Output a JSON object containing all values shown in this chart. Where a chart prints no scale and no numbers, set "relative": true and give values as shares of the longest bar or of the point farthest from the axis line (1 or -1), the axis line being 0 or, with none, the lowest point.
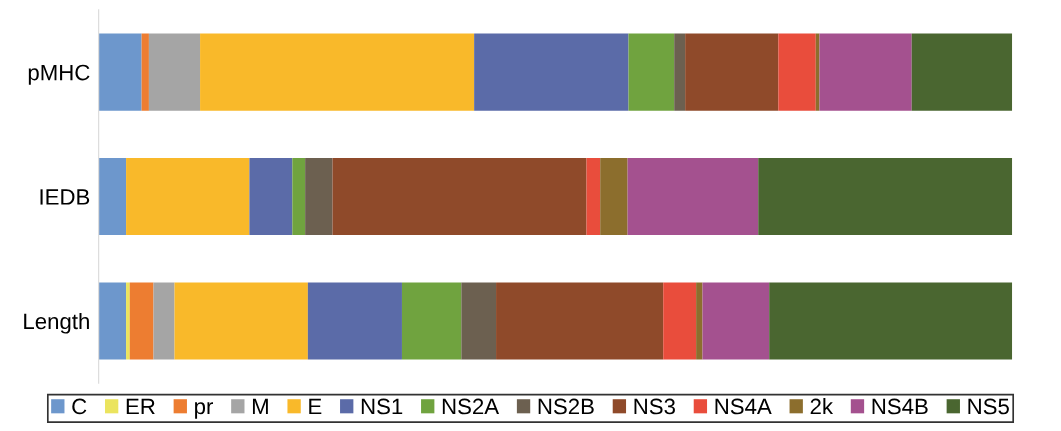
{
  "chart_data": {
    "type": "bar",
    "orientation": "horizontal",
    "stacked": true,
    "relative": true,
    "legend": "bottom",
    "grid": false,
    "categories": [
      "pMHC",
      "IEDB",
      "Length"
    ],
    "series": [
      {
        "name": "C",
        "color": "#6d97cc",
        "values": [
          0.047,
          0.03,
          0.03
        ]
      },
      {
        "name": "ER",
        "color": "#ebe45e",
        "values": [
          0,
          0,
          0.004
        ]
      },
      {
        "name": "pr",
        "color": "#ed7d31",
        "values": [
          0.008,
          0,
          0.026
        ]
      },
      {
        "name": "M",
        "color": "#a5a5a5",
        "values": [
          0.056,
          0,
          0.023
        ]
      },
      {
        "name": "E",
        "color": "#f9b92a",
        "values": [
          0.3,
          0.135,
          0.146
        ]
      },
      {
        "name": "NS1",
        "color": "#5b6ba8",
        "values": [
          0.169,
          0.047,
          0.103
        ]
      },
      {
        "name": "NS2A",
        "color": "#70a33f",
        "values": [
          0.05,
          0.014,
          0.065
        ]
      },
      {
        "name": "NS2B",
        "color": "#6c6050",
        "values": [
          0.012,
          0.03,
          0.038
        ]
      },
      {
        "name": "NS3",
        "color": "#8f4a2a",
        "values": [
          0.102,
          0.278,
          0.183
        ]
      },
      {
        "name": "NS4A",
        "color": "#e94d3c",
        "values": [
          0.041,
          0.015,
          0.036
        ]
      },
      {
        "name": "2k",
        "color": "#8c6e2d",
        "values": [
          0.004,
          0.03,
          0.007
        ]
      },
      {
        "name": "NS4B",
        "color": "#a4518f",
        "values": [
          0.101,
          0.143,
          0.073
        ]
      },
      {
        "name": "NS5",
        "color": "#4a6630",
        "values": [
          0.11,
          0.278,
          0.266
        ]
      }
    ]
  }
}
